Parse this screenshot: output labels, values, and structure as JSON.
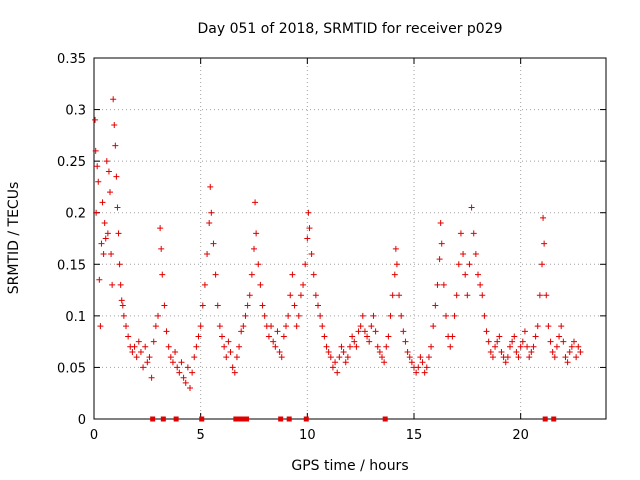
{
  "chart_data": {
    "type": "scatter",
    "title": "Day 051 of 2018, SRMTID for receiver p029",
    "xlabel": "GPS time / hours",
    "ylabel": "SRMTID / TECUs",
    "xlim": [
      0,
      24
    ],
    "ylim": [
      0,
      0.35
    ],
    "xticks": [
      0,
      5,
      10,
      15,
      20
    ],
    "xtick_labels": [
      "0",
      "5",
      "10",
      "15",
      "20"
    ],
    "yticks": [
      0,
      0.05,
      0.1,
      0.15,
      0.2,
      0.25,
      0.3,
      0.35
    ],
    "ytick_labels": [
      "0",
      "0.05",
      "0.1",
      "0.15",
      "0.2",
      "0.25",
      "0.3",
      "0.35"
    ],
    "grid": true,
    "marker": "+",
    "color": "#e00000",
    "series": [
      {
        "name": "SRMTID",
        "points": [
          [
            0.05,
            0.29
          ],
          [
            0.08,
            0.26
          ],
          [
            0.1,
            0.2
          ],
          [
            0.15,
            0.245
          ],
          [
            0.2,
            0.23
          ],
          [
            0.25,
            0.135
          ],
          [
            0.3,
            0.09
          ],
          [
            0.35,
            0.17
          ],
          [
            0.4,
            0.21
          ],
          [
            0.45,
            0.16
          ],
          [
            0.5,
            0.19
          ],
          [
            0.55,
            0.175
          ],
          [
            0.6,
            0.25
          ],
          [
            0.65,
            0.18
          ],
          [
            0.7,
            0.24
          ],
          [
            0.75,
            0.22
          ],
          [
            0.8,
            0.16
          ],
          [
            0.85,
            0.13
          ],
          [
            0.9,
            0.31
          ],
          [
            0.95,
            0.285
          ],
          [
            1.0,
            0.265
          ],
          [
            1.05,
            0.235
          ],
          [
            1.1,
            0.205
          ],
          [
            1.15,
            0.18
          ],
          [
            1.2,
            0.15
          ],
          [
            1.25,
            0.13
          ],
          [
            1.3,
            0.115
          ],
          [
            1.35,
            0.11
          ],
          [
            1.4,
            0.1
          ],
          [
            1.5,
            0.09
          ],
          [
            1.6,
            0.08
          ],
          [
            1.7,
            0.07
          ],
          [
            1.8,
            0.065
          ],
          [
            1.9,
            0.07
          ],
          [
            2.0,
            0.06
          ],
          [
            2.1,
            0.075
          ],
          [
            2.2,
            0.065
          ],
          [
            2.3,
            0.05
          ],
          [
            2.4,
            0.07
          ],
          [
            2.5,
            0.055
          ],
          [
            2.6,
            0.06
          ],
          [
            2.7,
            0.04
          ],
          [
            2.8,
            0.075
          ],
          [
            2.9,
            0.09
          ],
          [
            3.0,
            0.1
          ],
          [
            3.1,
            0.185
          ],
          [
            3.15,
            0.165
          ],
          [
            3.2,
            0.14
          ],
          [
            3.3,
            0.11
          ],
          [
            3.4,
            0.085
          ],
          [
            3.5,
            0.07
          ],
          [
            3.6,
            0.06
          ],
          [
            3.7,
            0.055
          ],
          [
            3.8,
            0.065
          ],
          [
            3.9,
            0.05
          ],
          [
            4.0,
            0.045
          ],
          [
            4.1,
            0.055
          ],
          [
            4.2,
            0.04
          ],
          [
            4.3,
            0.035
          ],
          [
            4.4,
            0.05
          ],
          [
            4.5,
            0.03
          ],
          [
            4.6,
            0.045
          ],
          [
            4.7,
            0.06
          ],
          [
            4.8,
            0.07
          ],
          [
            4.9,
            0.08
          ],
          [
            5.0,
            0.09
          ],
          [
            5.1,
            0.11
          ],
          [
            5.2,
            0.13
          ],
          [
            5.3,
            0.16
          ],
          [
            5.4,
            0.19
          ],
          [
            5.45,
            0.225
          ],
          [
            5.5,
            0.2
          ],
          [
            5.6,
            0.17
          ],
          [
            5.7,
            0.14
          ],
          [
            5.8,
            0.11
          ],
          [
            5.9,
            0.09
          ],
          [
            6.0,
            0.08
          ],
          [
            6.1,
            0.07
          ],
          [
            6.2,
            0.06
          ],
          [
            6.3,
            0.075
          ],
          [
            6.4,
            0.065
          ],
          [
            6.5,
            0.05
          ],
          [
            6.6,
            0.045
          ],
          [
            6.7,
            0.06
          ],
          [
            6.8,
            0.07
          ],
          [
            6.9,
            0.085
          ],
          [
            7.0,
            0.09
          ],
          [
            7.1,
            0.1
          ],
          [
            7.2,
            0.11
          ],
          [
            7.3,
            0.12
          ],
          [
            7.4,
            0.14
          ],
          [
            7.5,
            0.165
          ],
          [
            7.55,
            0.21
          ],
          [
            7.6,
            0.18
          ],
          [
            7.7,
            0.15
          ],
          [
            7.8,
            0.13
          ],
          [
            7.9,
            0.11
          ],
          [
            8.0,
            0.1
          ],
          [
            8.1,
            0.09
          ],
          [
            8.2,
            0.08
          ],
          [
            8.3,
            0.09
          ],
          [
            8.4,
            0.075
          ],
          [
            8.5,
            0.07
          ],
          [
            8.6,
            0.085
          ],
          [
            8.7,
            0.065
          ],
          [
            8.8,
            0.06
          ],
          [
            8.9,
            0.08
          ],
          [
            9.0,
            0.09
          ],
          [
            9.1,
            0.1
          ],
          [
            9.2,
            0.12
          ],
          [
            9.3,
            0.14
          ],
          [
            9.4,
            0.11
          ],
          [
            9.5,
            0.09
          ],
          [
            9.6,
            0.1
          ],
          [
            9.7,
            0.12
          ],
          [
            9.8,
            0.13
          ],
          [
            9.9,
            0.15
          ],
          [
            10.0,
            0.175
          ],
          [
            10.05,
            0.2
          ],
          [
            10.1,
            0.185
          ],
          [
            10.2,
            0.16
          ],
          [
            10.3,
            0.14
          ],
          [
            10.4,
            0.12
          ],
          [
            10.5,
            0.11
          ],
          [
            10.6,
            0.1
          ],
          [
            10.7,
            0.09
          ],
          [
            10.8,
            0.08
          ],
          [
            10.9,
            0.07
          ],
          [
            11.0,
            0.065
          ],
          [
            11.1,
            0.06
          ],
          [
            11.2,
            0.05
          ],
          [
            11.3,
            0.055
          ],
          [
            11.4,
            0.045
          ],
          [
            11.5,
            0.06
          ],
          [
            11.6,
            0.07
          ],
          [
            11.7,
            0.065
          ],
          [
            11.8,
            0.055
          ],
          [
            11.9,
            0.06
          ],
          [
            12.0,
            0.07
          ],
          [
            12.1,
            0.08
          ],
          [
            12.2,
            0.075
          ],
          [
            12.3,
            0.07
          ],
          [
            12.4,
            0.085
          ],
          [
            12.5,
            0.09
          ],
          [
            12.6,
            0.1
          ],
          [
            12.7,
            0.085
          ],
          [
            12.8,
            0.08
          ],
          [
            12.9,
            0.075
          ],
          [
            13.0,
            0.09
          ],
          [
            13.1,
            0.1
          ],
          [
            13.2,
            0.085
          ],
          [
            13.3,
            0.07
          ],
          [
            13.4,
            0.065
          ],
          [
            13.5,
            0.06
          ],
          [
            13.6,
            0.055
          ],
          [
            13.7,
            0.07
          ],
          [
            13.8,
            0.08
          ],
          [
            13.9,
            0.1
          ],
          [
            14.0,
            0.12
          ],
          [
            14.1,
            0.14
          ],
          [
            14.15,
            0.165
          ],
          [
            14.2,
            0.15
          ],
          [
            14.3,
            0.12
          ],
          [
            14.4,
            0.1
          ],
          [
            14.5,
            0.085
          ],
          [
            14.6,
            0.075
          ],
          [
            14.7,
            0.065
          ],
          [
            14.8,
            0.06
          ],
          [
            14.9,
            0.055
          ],
          [
            15.0,
            0.05
          ],
          [
            15.1,
            0.045
          ],
          [
            15.2,
            0.05
          ],
          [
            15.3,
            0.06
          ],
          [
            15.4,
            0.055
          ],
          [
            15.5,
            0.045
          ],
          [
            15.6,
            0.05
          ],
          [
            15.7,
            0.06
          ],
          [
            15.8,
            0.07
          ],
          [
            15.9,
            0.09
          ],
          [
            16.0,
            0.11
          ],
          [
            16.1,
            0.13
          ],
          [
            16.2,
            0.155
          ],
          [
            16.25,
            0.19
          ],
          [
            16.3,
            0.17
          ],
          [
            16.4,
            0.13
          ],
          [
            16.5,
            0.1
          ],
          [
            16.6,
            0.08
          ],
          [
            16.7,
            0.07
          ],
          [
            16.8,
            0.08
          ],
          [
            16.9,
            0.1
          ],
          [
            17.0,
            0.12
          ],
          [
            17.1,
            0.15
          ],
          [
            17.2,
            0.18
          ],
          [
            17.3,
            0.16
          ],
          [
            17.4,
            0.14
          ],
          [
            17.5,
            0.12
          ],
          [
            17.6,
            0.15
          ],
          [
            17.7,
            0.205
          ],
          [
            17.8,
            0.18
          ],
          [
            17.9,
            0.16
          ],
          [
            18.0,
            0.14
          ],
          [
            18.1,
            0.13
          ],
          [
            18.2,
            0.12
          ],
          [
            18.3,
            0.1
          ],
          [
            18.4,
            0.085
          ],
          [
            18.5,
            0.075
          ],
          [
            18.6,
            0.065
          ],
          [
            18.7,
            0.06
          ],
          [
            18.8,
            0.07
          ],
          [
            18.9,
            0.075
          ],
          [
            19.0,
            0.08
          ],
          [
            19.1,
            0.065
          ],
          [
            19.2,
            0.06
          ],
          [
            19.3,
            0.055
          ],
          [
            19.4,
            0.06
          ],
          [
            19.5,
            0.07
          ],
          [
            19.6,
            0.075
          ],
          [
            19.7,
            0.08
          ],
          [
            19.8,
            0.065
          ],
          [
            19.9,
            0.06
          ],
          [
            20.0,
            0.07
          ],
          [
            20.1,
            0.075
          ],
          [
            20.2,
            0.085
          ],
          [
            20.3,
            0.07
          ],
          [
            20.4,
            0.06
          ],
          [
            20.5,
            0.065
          ],
          [
            20.6,
            0.07
          ],
          [
            20.7,
            0.08
          ],
          [
            20.8,
            0.09
          ],
          [
            20.9,
            0.12
          ],
          [
            21.0,
            0.15
          ],
          [
            21.05,
            0.195
          ],
          [
            21.1,
            0.17
          ],
          [
            21.2,
            0.12
          ],
          [
            21.3,
            0.09
          ],
          [
            21.4,
            0.075
          ],
          [
            21.5,
            0.065
          ],
          [
            21.6,
            0.06
          ],
          [
            21.7,
            0.07
          ],
          [
            21.8,
            0.08
          ],
          [
            21.9,
            0.09
          ],
          [
            22.0,
            0.075
          ],
          [
            22.1,
            0.06
          ],
          [
            22.2,
            0.055
          ],
          [
            22.3,
            0.065
          ],
          [
            22.4,
            0.07
          ],
          [
            22.5,
            0.075
          ],
          [
            22.6,
            0.06
          ],
          [
            22.7,
            0.07
          ],
          [
            22.8,
            0.065
          ]
        ]
      }
    ],
    "zero_markers": [
      2.75,
      3.25,
      3.85,
      5.05,
      6.65,
      6.75,
      6.85,
      6.95,
      7.05,
      7.15,
      8.75,
      9.15,
      9.95,
      13.65,
      21.15,
      21.55
    ]
  }
}
